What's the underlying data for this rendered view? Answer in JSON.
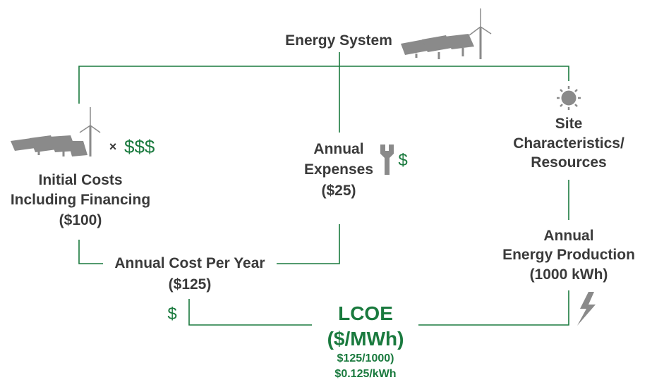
{
  "colors": {
    "line": "#1a7a3e",
    "text": "#3a3a3a",
    "accent": "#1a7a3e",
    "icon": "#8a8a8a"
  },
  "top": {
    "title": "Energy System",
    "icons": [
      "solar-panels-icon",
      "wind-turbine-icon"
    ]
  },
  "initial": {
    "icons": [
      "solar-panels-icon",
      "wind-turbine-icon"
    ],
    "times": "×",
    "money": "$$$",
    "line1": "Initial Costs",
    "line2": "Including Financing",
    "value": "($100)"
  },
  "annual_expenses": {
    "line1": "Annual",
    "line2": "Expenses",
    "value": "($25)",
    "icon": "wrench-icon",
    "money": "$"
  },
  "site": {
    "icon": "sun-icon",
    "line1": "Site",
    "line2": "Characteristics/",
    "line3": "Resources"
  },
  "annual_cost": {
    "label": "Annual Cost Per Year",
    "value": "($125)",
    "money": "$"
  },
  "production": {
    "line1": "Annual",
    "line2": "Energy Production",
    "value": "(1000 kWh)",
    "icon": "lightning-bolt-icon"
  },
  "lcoe": {
    "title": "LCOE",
    "unit": "($/MWh)",
    "calc1": "$125/1000)",
    "calc2": "$0.125/kWh"
  }
}
